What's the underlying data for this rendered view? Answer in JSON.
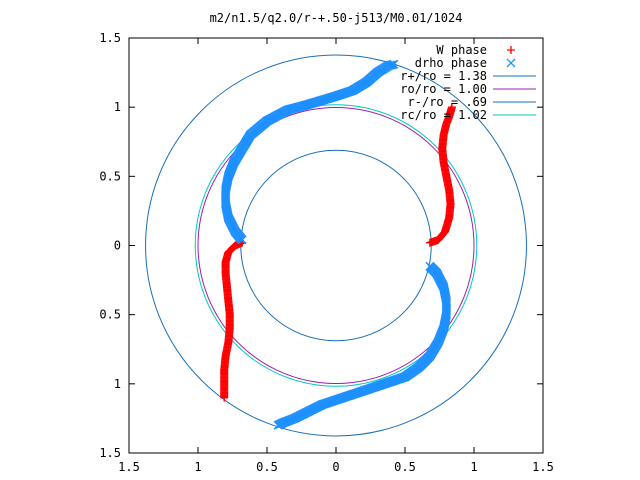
{
  "chart_data": {
    "type": "scatter",
    "title": "m2/n1.5/q2.0/r-+.50-j513/M0.01/1024",
    "xlabel": "",
    "ylabel": "",
    "xlim": [
      -1.5,
      1.5
    ],
    "ylim": [
      -1.5,
      1.5
    ],
    "grid": false,
    "legend_position": "top-right",
    "x_tick_labels": [
      "1.5",
      "1",
      "0.5",
      "0",
      "0.5",
      "1",
      "1.5"
    ],
    "y_tick_labels": [
      "1.5",
      "1",
      "0.5",
      "0",
      "0.5",
      "1",
      "1.5"
    ],
    "tick_values": [
      -1.5,
      -1.0,
      -0.5,
      0,
      0.5,
      1.0,
      1.5
    ],
    "series": [
      {
        "name": "W phase",
        "marker": "plus",
        "color": "#ff0000",
        "curves": [
          [
            [
              0.68,
              0.02
            ],
            [
              0.74,
              0.04
            ],
            [
              0.79,
              0.1
            ],
            [
              0.82,
              0.2
            ],
            [
              0.83,
              0.3
            ],
            [
              0.82,
              0.4
            ],
            [
              0.8,
              0.5
            ],
            [
              0.78,
              0.6
            ],
            [
              0.77,
              0.7
            ],
            [
              0.78,
              0.8
            ],
            [
              0.8,
              0.88
            ],
            [
              0.82,
              0.93
            ],
            [
              0.84,
              1.0
            ]
          ],
          [
            [
              -0.68,
              0.02
            ],
            [
              -0.73,
              0.0
            ],
            [
              -0.78,
              -0.05
            ],
            [
              -0.8,
              -0.12
            ],
            [
              -0.8,
              -0.2
            ],
            [
              -0.79,
              -0.3
            ],
            [
              -0.78,
              -0.4
            ],
            [
              -0.77,
              -0.5
            ],
            [
              -0.77,
              -0.6
            ],
            [
              -0.78,
              -0.7
            ],
            [
              -0.8,
              -0.8
            ],
            [
              -0.81,
              -0.9
            ],
            [
              -0.81,
              -1.0
            ],
            [
              -0.81,
              -1.1
            ]
          ]
        ]
      },
      {
        "name": "drho phase",
        "marker": "cross",
        "color": "#1e90ff",
        "curves": [
          [
            [
              -0.68,
              0.04
            ],
            [
              -0.73,
              0.1
            ],
            [
              -0.78,
              0.2
            ],
            [
              -0.8,
              0.3
            ],
            [
              -0.8,
              0.4
            ],
            [
              -0.78,
              0.5
            ],
            [
              -0.74,
              0.6
            ],
            [
              -0.68,
              0.7
            ],
            [
              -0.62,
              0.8
            ],
            [
              -0.5,
              0.9
            ],
            [
              -0.35,
              0.98
            ],
            [
              -0.2,
              1.02
            ],
            [
              -0.1,
              1.05
            ],
            [
              0.0,
              1.08
            ],
            [
              0.12,
              1.12
            ],
            [
              0.22,
              1.18
            ],
            [
              0.3,
              1.25
            ],
            [
              0.38,
              1.3
            ],
            [
              0.42,
              1.31
            ]
          ],
          [
            [
              0.68,
              -0.15
            ],
            [
              0.73,
              -0.2
            ],
            [
              0.78,
              -0.3
            ],
            [
              0.8,
              -0.4
            ],
            [
              0.8,
              -0.5
            ],
            [
              0.78,
              -0.6
            ],
            [
              0.74,
              -0.7
            ],
            [
              0.68,
              -0.8
            ],
            [
              0.6,
              -0.88
            ],
            [
              0.5,
              -0.95
            ],
            [
              0.35,
              -1.0
            ],
            [
              0.2,
              -1.05
            ],
            [
              0.05,
              -1.1
            ],
            [
              -0.1,
              -1.15
            ],
            [
              -0.2,
              -1.2
            ],
            [
              -0.3,
              -1.25
            ],
            [
              -0.38,
              -1.28
            ],
            [
              -0.42,
              -1.3
            ]
          ]
        ]
      },
      {
        "name": "r+/ro = 1.38",
        "type": "circle",
        "radius": 1.38,
        "color": "#1a6fb8"
      },
      {
        "name": "ro/ro = 1.00",
        "type": "circle",
        "radius": 1.0,
        "color": "#9a1fb3"
      },
      {
        "name": "r-/ro = .69",
        "type": "circle",
        "radius": 0.69,
        "color": "#1a6fb8"
      },
      {
        "name": "rc/ro = 1.02",
        "type": "circle",
        "radius": 1.02,
        "color": "#00c8c8"
      }
    ]
  }
}
